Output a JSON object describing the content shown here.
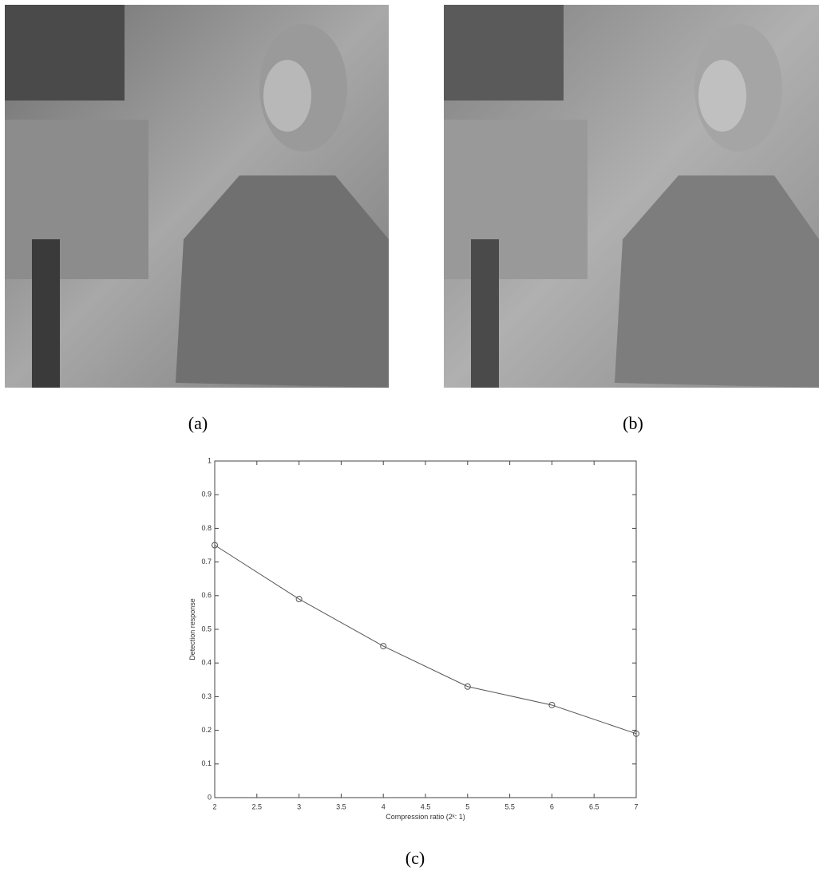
{
  "captions": [
    "(a)",
    "(b)",
    "(c)"
  ],
  "chart_data": {
    "type": "line",
    "x_label": "Compression ratio (2ᵏ: 1)",
    "y_label": "Detection response",
    "x": [
      2,
      3,
      4,
      5,
      6,
      7
    ],
    "series": [
      {
        "name": "Detection response",
        "color": "#555555",
        "values": [
          0.75,
          0.59,
          0.45,
          0.33,
          0.275,
          0.19
        ]
      }
    ],
    "xlim": [
      2,
      7
    ],
    "xticks": [
      2,
      2.5,
      3,
      3.5,
      4,
      4.5,
      5,
      5.5,
      6,
      6.5,
      7
    ],
    "ylim": [
      0,
      1
    ],
    "yticks": [
      0,
      0.1,
      0.2,
      0.3,
      0.4,
      0.5,
      0.6,
      0.7,
      0.8,
      0.9,
      1
    ],
    "marker": "circle"
  }
}
